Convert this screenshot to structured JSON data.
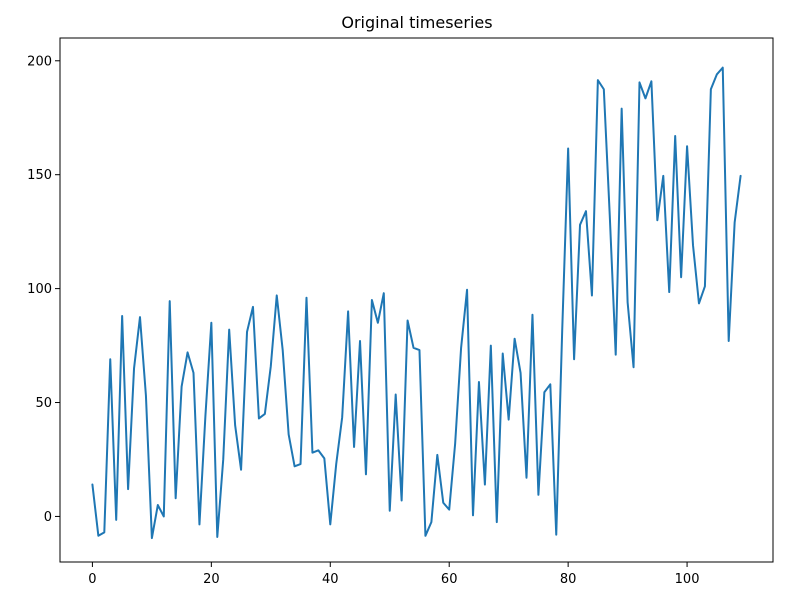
{
  "chart_data": {
    "type": "line",
    "title": "Original timeseries",
    "xlabel": "",
    "ylabel": "",
    "xlim": [
      -5.45,
      114.45
    ],
    "ylim": [
      -20,
      210
    ],
    "x_ticks": [
      0,
      20,
      40,
      60,
      80,
      100
    ],
    "y_ticks": [
      0,
      50,
      100,
      150,
      200
    ],
    "grid": false,
    "series": [
      {
        "color": "#1f77b4",
        "x": [
          0,
          1,
          2,
          3,
          4,
          5,
          6,
          7,
          8,
          9,
          10,
          11,
          12,
          13,
          14,
          15,
          16,
          17,
          18,
          19,
          20,
          21,
          22,
          23,
          24,
          25,
          26,
          27,
          28,
          29,
          30,
          31,
          32,
          33,
          34,
          35,
          36,
          37,
          38,
          39,
          40,
          41,
          42,
          43,
          44,
          45,
          46,
          47,
          48,
          49,
          50,
          51,
          52,
          53,
          54,
          55,
          56,
          57,
          58,
          59,
          60,
          61,
          62,
          63,
          64,
          65,
          66,
          67,
          68,
          69,
          70,
          71,
          72,
          73,
          74,
          75,
          76,
          77,
          78,
          79,
          80,
          81,
          82,
          83,
          84,
          85,
          86,
          87,
          88,
          89,
          90,
          91,
          92,
          93,
          94,
          95,
          96,
          97,
          98,
          99,
          100,
          101,
          102,
          103,
          104,
          105,
          106,
          107,
          108,
          109
        ],
        "values": [
          14,
          -8.5,
          -7,
          69,
          -1.5,
          88,
          12,
          65,
          87.5,
          53,
          -9.5,
          5,
          0,
          94.5,
          8,
          57,
          72,
          63,
          -3.5,
          44,
          85,
          -9,
          25,
          82,
          40,
          20.5,
          81,
          92,
          43,
          45,
          66,
          97,
          73,
          36,
          22,
          23,
          96,
          28,
          29,
          25.5,
          -3.5,
          23,
          43.5,
          90,
          30.5,
          77,
          18.5,
          95,
          85,
          98,
          2.5,
          53.5,
          7,
          86,
          74,
          73,
          -8.5,
          -2.5,
          27,
          6,
          3,
          32,
          74,
          99.5,
          0.5,
          59,
          14,
          75,
          -2.5,
          71.5,
          42.5,
          78,
          63,
          17,
          88.5,
          9.5,
          54.5,
          58,
          -8,
          81.5,
          161.5,
          69,
          128,
          134,
          97,
          191.5,
          187.5,
          132,
          71,
          179,
          94,
          65.5,
          190.5,
          183.5,
          191,
          130,
          149.5,
          98.5,
          167,
          105,
          162.5,
          119,
          93.5,
          101,
          187.5,
          194,
          197,
          77,
          129,
          149.5
        ]
      }
    ]
  }
}
